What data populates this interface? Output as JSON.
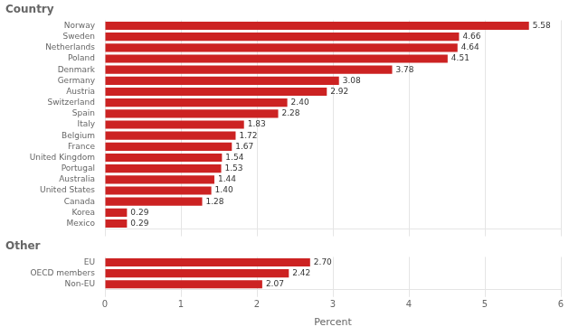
{
  "chart_data": [
    {
      "type": "bar",
      "orientation": "horizontal",
      "title": "Country",
      "categories": [
        "Norway",
        "Sweden",
        "Netherlands",
        "Poland",
        "Denmark",
        "Germany",
        "Austria",
        "Switzerland",
        "Spain",
        "Italy",
        "Belgium",
        "France",
        "United Kingdom",
        "Portugal",
        "Australia",
        "United States",
        "Canada",
        "Korea",
        "Mexico"
      ],
      "values": [
        5.58,
        4.66,
        4.64,
        4.51,
        3.78,
        3.08,
        2.92,
        2.4,
        2.28,
        1.83,
        1.72,
        1.67,
        1.54,
        1.53,
        1.44,
        1.4,
        1.28,
        0.29,
        0.29
      ],
      "value_labels": [
        "5.58",
        "4.66",
        "4.64",
        "4.51",
        "3.78",
        "3.08",
        "2.92",
        "2.40",
        "2.28",
        "1.83",
        "1.72",
        "1.67",
        "1.54",
        "1.53",
        "1.44",
        "1.40",
        "1.28",
        "0.29",
        "0.29"
      ],
      "data_labels": true,
      "color": "#cc2222",
      "xlim": [
        0,
        6
      ],
      "xticks": [
        0,
        1,
        2,
        3,
        4,
        5,
        6
      ],
      "grid": true,
      "tick_labels": "y"
    },
    {
      "type": "bar",
      "orientation": "horizontal",
      "title": "Other",
      "xlabel": "Percent",
      "categories": [
        "EU",
        "OECD members",
        "Non-EU"
      ],
      "values": [
        2.7,
        2.42,
        2.07
      ],
      "value_labels": [
        "2.70",
        "2.42",
        "2.07"
      ],
      "data_labels": true,
      "color": "#cc2222",
      "xlim": [
        0,
        6
      ],
      "xticks": [
        0,
        1,
        2,
        3,
        4,
        5,
        6
      ],
      "grid": true
    }
  ]
}
